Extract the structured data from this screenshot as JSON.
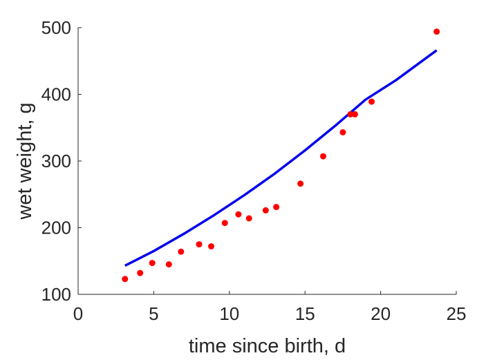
{
  "chart_data": {
    "type": "scatter",
    "xlabel": "time since birth, d",
    "ylabel": "wet weight, g",
    "xlim": [
      0,
      25
    ],
    "ylim": [
      100,
      500
    ],
    "xticks": [
      0,
      5,
      10,
      15,
      20,
      25
    ],
    "yticks": [
      100,
      200,
      300,
      400,
      500
    ],
    "grid": false,
    "legend": "none",
    "series": [
      {
        "kind": "scatter",
        "color": "#ff0000",
        "points": [
          [
            3.1,
            123
          ],
          [
            4.1,
            132
          ],
          [
            4.9,
            147
          ],
          [
            6.0,
            145
          ],
          [
            6.8,
            164
          ],
          [
            8.0,
            175
          ],
          [
            8.8,
            172
          ],
          [
            9.7,
            207
          ],
          [
            10.6,
            220
          ],
          [
            11.3,
            214
          ],
          [
            12.4,
            226
          ],
          [
            13.1,
            231
          ],
          [
            14.7,
            266
          ],
          [
            16.2,
            307
          ],
          [
            17.5,
            343
          ],
          [
            18.0,
            370
          ],
          [
            18.3,
            370
          ],
          [
            19.4,
            389
          ],
          [
            23.7,
            494
          ]
        ]
      },
      {
        "kind": "line",
        "color": "#0000ee",
        "points": [
          [
            3.1,
            143
          ],
          [
            5.0,
            165
          ],
          [
            7.0,
            191
          ],
          [
            9.0,
            219
          ],
          [
            11.0,
            249
          ],
          [
            13.0,
            281
          ],
          [
            15.0,
            316
          ],
          [
            17.0,
            353
          ],
          [
            19.0,
            392
          ],
          [
            21.0,
            421
          ],
          [
            23.7,
            466
          ]
        ]
      }
    ]
  }
}
